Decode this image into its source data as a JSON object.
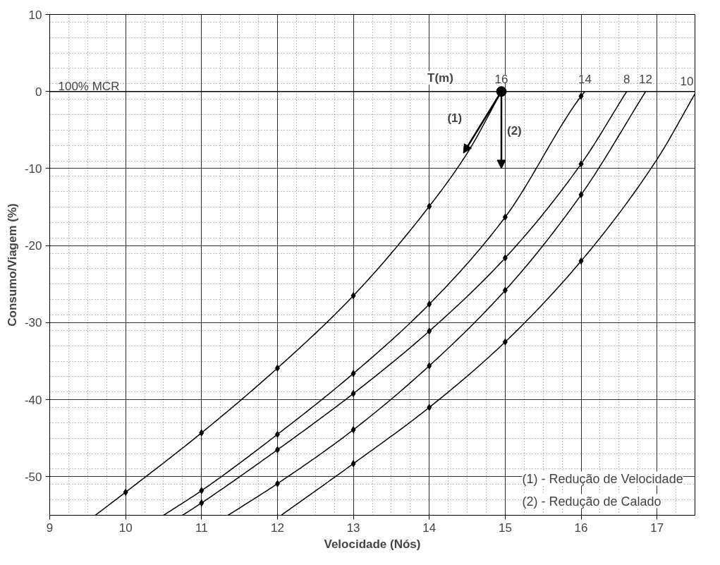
{
  "chart_data": {
    "type": "line",
    "xlabel": "Velocidade (Nós)",
    "ylabel": "Consumo/Viagem (%)",
    "xlim": [
      9,
      17.5
    ],
    "ylim": [
      -55,
      10
    ],
    "xticks": [
      9,
      10,
      11,
      12,
      13,
      14,
      15,
      16,
      17
    ],
    "yticks": [
      -50,
      -40,
      -30,
      -20,
      -10,
      0,
      10
    ],
    "grid": true,
    "line_style": "solid",
    "series": [
      {
        "name": "16",
        "color": "#000000",
        "marker": "none",
        "x": [
          9.6,
          10,
          11,
          12,
          13,
          14,
          14.5,
          14.95
        ],
        "values": [
          -55,
          -52,
          -44.3,
          -35.9,
          -26.5,
          -14.9,
          -8,
          0
        ]
      },
      {
        "name": "14",
        "color": "#000000",
        "marker": "none",
        "x": [
          10.5,
          11,
          12,
          13,
          14,
          15,
          16,
          16.05
        ],
        "values": [
          -55,
          -51.8,
          -44.5,
          -36.6,
          -27.6,
          -16.3,
          -0.6,
          0
        ]
      },
      {
        "name": "8",
        "color": "#000000",
        "marker": "none",
        "x": [
          10.75,
          11,
          12,
          13,
          14,
          15,
          16,
          16.6
        ],
        "values": [
          -55,
          -53.4,
          -46.5,
          -39.2,
          -31.1,
          -21.6,
          -9.4,
          0
        ]
      },
      {
        "name": "12",
        "color": "#000000",
        "marker": "none",
        "x": [
          11.35,
          12,
          13,
          14,
          15,
          16,
          16.85
        ],
        "values": [
          -55,
          -50.9,
          -43.9,
          -35.6,
          -25.8,
          -13.4,
          0
        ]
      },
      {
        "name": "10",
        "color": "#000000",
        "marker": "none",
        "x": [
          12.05,
          13,
          14,
          15,
          16,
          17,
          17.5
        ],
        "values": [
          -55,
          -48.3,
          -41,
          -32.5,
          -22,
          -8.8,
          -0.3
        ]
      },
      {
        "type": "scatter",
        "color": "#000000",
        "marker": "circle",
        "x": [
          14.95
        ],
        "values": [
          0
        ]
      },
      {
        "type": "scatter",
        "color": "#000000",
        "marker": "diamond",
        "x": [
          10,
          11,
          12,
          13,
          14,
          11,
          12,
          13,
          14,
          15,
          16,
          11,
          12,
          13,
          14,
          15,
          16,
          12,
          13,
          14,
          15,
          16,
          13,
          14,
          15,
          16
        ],
        "values": [
          -52,
          -44.3,
          -35.9,
          -26.5,
          -14.9,
          -51.8,
          -44.5,
          -36.6,
          -27.6,
          -16.3,
          -0.6,
          -53.4,
          -46.5,
          -39.2,
          -31.1,
          -21.6,
          -9.4,
          -50.9,
          -43.9,
          -35.6,
          -25.8,
          -13.4,
          -48.3,
          -41,
          -32.5,
          -22
        ]
      }
    ],
    "ref_lines": [
      {
        "axis": "y",
        "value": 0,
        "label": "100% MCR",
        "color": "#000000"
      }
    ],
    "annotations": [
      "T(m)",
      {
        "text": "(1)",
        "x": 14.45,
        "y": -8
      },
      "(2)",
      "(1) - Redução de Velocidade",
      "(2) - Redução de Calado"
    ]
  }
}
